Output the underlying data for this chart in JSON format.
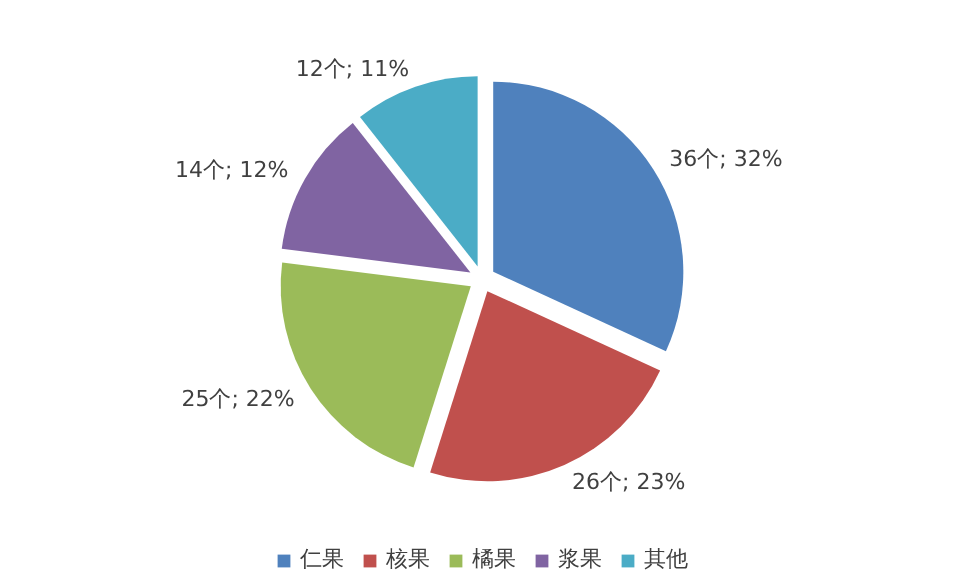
{
  "chart_data": {
    "type": "pie",
    "categories": [
      "仁果",
      "核果",
      "橘果",
      "浆果",
      "其他"
    ],
    "values": [
      36,
      26,
      25,
      14,
      12
    ],
    "colors": [
      "#4f81bd",
      "#c0504d",
      "#9bbb59",
      "#8064a2",
      "#4bacc6"
    ],
    "value_labels": [
      "36个; 32%",
      "26个; 23%",
      "25个; 22%",
      "14个; 12%",
      "12个; 11%"
    ],
    "legend": "bottom"
  }
}
